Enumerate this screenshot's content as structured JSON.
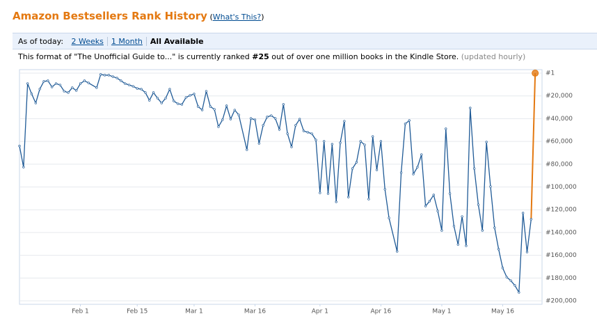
{
  "header": {
    "title": "Amazon Bestsellers Rank History",
    "help_open": "(",
    "help_link": "What's This?",
    "help_close": ")"
  },
  "toolbar": {
    "label": "As of today:",
    "options": [
      "2 Weeks",
      "1 Month",
      "All Available"
    ],
    "selected": 2
  },
  "status": {
    "before": "This format of \"The Unofficial Guide to...\" is currently ranked",
    "rank": "#25",
    "after": "out of over one million books in the Kindle Store.",
    "note": "(updated hourly)"
  },
  "chart_data": {
    "type": "line",
    "y_inverted": true,
    "grid": true,
    "xlim": [
      17,
      145
    ],
    "ylim": [
      1,
      200000
    ],
    "xticks": [
      {
        "value": 32,
        "label": "Feb 1"
      },
      {
        "value": 46,
        "label": "Feb 15"
      },
      {
        "value": 60,
        "label": "Mar 1"
      },
      {
        "value": 75,
        "label": "Mar 16"
      },
      {
        "value": 91,
        "label": "Apr 1"
      },
      {
        "value": 106,
        "label": "Apr 16"
      },
      {
        "value": 121,
        "label": "May 1"
      },
      {
        "value": 136,
        "label": "May 16"
      }
    ],
    "yticks": [
      {
        "value": 1,
        "label": "#1"
      },
      {
        "value": 20000,
        "label": "#20,000"
      },
      {
        "value": 40000,
        "label": "#40,000"
      },
      {
        "value": 60000,
        "label": "#60,000"
      },
      {
        "value": 80000,
        "label": "#80,000"
      },
      {
        "value": 100000,
        "label": "#100,000"
      },
      {
        "value": 120000,
        "label": "#120,000"
      },
      {
        "value": 140000,
        "label": "#140,000"
      },
      {
        "value": 160000,
        "label": "#160,000"
      },
      {
        "value": 180000,
        "label": "#180,000"
      },
      {
        "value": 200000,
        "label": "#200,000"
      }
    ],
    "x": [
      17,
      18,
      19,
      20,
      21,
      22,
      23,
      24,
      25,
      26,
      27,
      28,
      29,
      30,
      31,
      32,
      33,
      34,
      36,
      37,
      38,
      39,
      40,
      41,
      42,
      43,
      44,
      45,
      46,
      47,
      48,
      49,
      50,
      51,
      52,
      53,
      54,
      55,
      56,
      57,
      58,
      59,
      60,
      61,
      62,
      63,
      64,
      65,
      66,
      67,
      68,
      69,
      70,
      71,
      73,
      74,
      75,
      76,
      77,
      78,
      79,
      80,
      81,
      82,
      83,
      84,
      85,
      86,
      87,
      88,
      89,
      90,
      91,
      92,
      93,
      94,
      95,
      96,
      97,
      98,
      99,
      100,
      101,
      102,
      103,
      104,
      105,
      106,
      107,
      108,
      110,
      111,
      112,
      113,
      114,
      115,
      116,
      117,
      118,
      119,
      120,
      121,
      122,
      123,
      124,
      125,
      126,
      127,
      128,
      129,
      130,
      131,
      132,
      133,
      134,
      135,
      136,
      137,
      138,
      139,
      140,
      141,
      142,
      143,
      144
    ],
    "series": [
      {
        "color": "#1f5a96",
        "latest_color": "#e47911",
        "values": [
          64000,
          82600,
          9200,
          18300,
          26300,
          14000,
          7300,
          6700,
          12200,
          9200,
          10400,
          15900,
          17100,
          12800,
          15300,
          9200,
          6700,
          8600,
          12800,
          1200,
          1800,
          1800,
          3100,
          4300,
          6700,
          9200,
          10400,
          11600,
          13500,
          14100,
          17100,
          23900,
          17100,
          22000,
          26300,
          22000,
          14100,
          24500,
          26900,
          27500,
          21400,
          19600,
          18300,
          29400,
          32400,
          15900,
          29400,
          31800,
          47100,
          41000,
          28700,
          40400,
          32400,
          36700,
          67300,
          39800,
          41000,
          61800,
          45900,
          38500,
          37300,
          39800,
          49500,
          27500,
          53200,
          64800,
          45900,
          40400,
          50800,
          52000,
          53200,
          58700,
          105200,
          59900,
          105800,
          62400,
          113100,
          61200,
          42200,
          108900,
          83800,
          78300,
          59900,
          63000,
          110700,
          55700,
          85000,
          59900,
          102100,
          127200,
          156600,
          87500,
          44600,
          41600,
          88700,
          82600,
          71600,
          116800,
          112500,
          107000,
          121100,
          138200,
          48900,
          105800,
          134500,
          150500,
          126000,
          151700,
          30600,
          83800,
          115600,
          138200,
          60500,
          99700,
          135800,
          154700,
          171200,
          179200,
          182300,
          186500,
          192600,
          122900,
          157200,
          128400,
          25
        ]
      }
    ]
  }
}
